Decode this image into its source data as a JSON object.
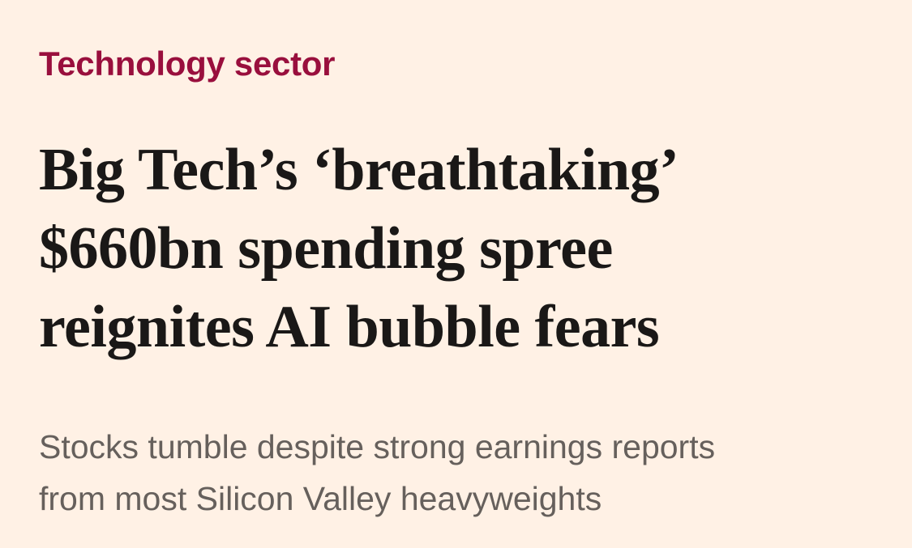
{
  "article": {
    "section": "Technology sector",
    "headline_lines": [
      "Big Tech’s ‘breathtaking’",
      "$660bn spending spree",
      "reignites AI bubble fears"
    ],
    "standfirst_lines": [
      "Stocks tumble despite strong earnings reports",
      "from most Silicon Valley heavyweights"
    ]
  },
  "colors": {
    "background": "#FFF1E5",
    "section_accent": "#990F3D",
    "headline": "#1A1817",
    "standfirst": "#66605C"
  }
}
